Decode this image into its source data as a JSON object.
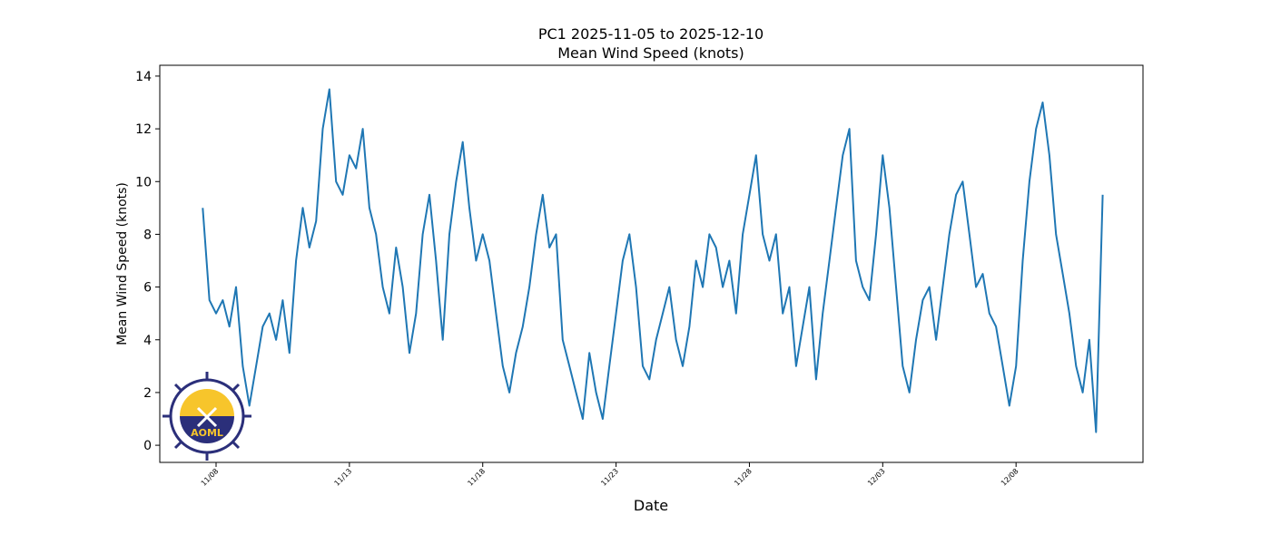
{
  "chart_data": {
    "type": "line",
    "title": "PC1 2025-11-05 to 2025-12-10",
    "subtitle": "Mean Wind Speed (knots)",
    "x_label": "Date",
    "y_label": "Mean Wind Speed (knots)",
    "logo": {
      "text": "AOML"
    },
    "x": [
      "2025-11-07T12:00",
      "2025-11-07T18:00",
      "2025-11-08T00:00",
      "2025-11-08T06:00",
      "2025-11-08T12:00",
      "2025-11-08T18:00",
      "2025-11-09T00:00",
      "2025-11-09T06:00",
      "2025-11-09T12:00",
      "2025-11-09T18:00",
      "2025-11-10T00:00",
      "2025-11-10T06:00",
      "2025-11-10T12:00",
      "2025-11-10T18:00",
      "2025-11-11T00:00",
      "2025-11-11T06:00",
      "2025-11-11T12:00",
      "2025-11-11T18:00",
      "2025-11-12T00:00",
      "2025-11-12T06:00",
      "2025-11-12T12:00",
      "2025-11-12T18:00",
      "2025-11-13T00:00",
      "2025-11-13T06:00",
      "2025-11-13T12:00",
      "2025-11-13T18:00",
      "2025-11-14T00:00",
      "2025-11-14T06:00",
      "2025-11-14T12:00",
      "2025-11-14T18:00",
      "2025-11-15T00:00",
      "2025-11-15T06:00",
      "2025-11-15T12:00",
      "2025-11-15T18:00",
      "2025-11-16T00:00",
      "2025-11-16T06:00",
      "2025-11-16T12:00",
      "2025-11-16T18:00",
      "2025-11-17T00:00",
      "2025-11-17T06:00",
      "2025-11-17T12:00",
      "2025-11-17T18:00",
      "2025-11-18T00:00",
      "2025-11-18T06:00",
      "2025-11-18T12:00",
      "2025-11-18T18:00",
      "2025-11-19T00:00",
      "2025-11-19T06:00",
      "2025-11-19T12:00",
      "2025-11-19T18:00",
      "2025-11-20T00:00",
      "2025-11-20T06:00",
      "2025-11-20T12:00",
      "2025-11-20T18:00",
      "2025-11-21T00:00",
      "2025-11-21T06:00",
      "2025-11-21T12:00",
      "2025-11-21T18:00",
      "2025-11-22T00:00",
      "2025-11-22T06:00",
      "2025-11-22T12:00",
      "2025-11-22T18:00",
      "2025-11-23T00:00",
      "2025-11-23T06:00",
      "2025-11-23T12:00",
      "2025-11-23T18:00",
      "2025-11-24T00:00",
      "2025-11-24T06:00",
      "2025-11-24T12:00",
      "2025-11-24T18:00",
      "2025-11-25T00:00",
      "2025-11-25T06:00",
      "2025-11-25T12:00",
      "2025-11-25T18:00",
      "2025-11-26T00:00",
      "2025-11-26T06:00",
      "2025-11-26T12:00",
      "2025-11-26T18:00",
      "2025-11-27T00:00",
      "2025-11-27T06:00",
      "2025-11-27T12:00",
      "2025-11-27T18:00",
      "2025-11-28T00:00",
      "2025-11-28T06:00",
      "2025-11-28T12:00",
      "2025-11-28T18:00",
      "2025-11-29T00:00",
      "2025-11-29T06:00",
      "2025-11-29T12:00",
      "2025-11-29T18:00",
      "2025-11-30T00:00",
      "2025-11-30T06:00",
      "2025-11-30T12:00",
      "2025-11-30T18:00",
      "2025-12-01T00:00",
      "2025-12-01T06:00",
      "2025-12-01T12:00",
      "2025-12-01T18:00",
      "2025-12-02T00:00",
      "2025-12-02T06:00",
      "2025-12-02T12:00",
      "2025-12-02T18:00",
      "2025-12-03T00:00",
      "2025-12-03T06:00",
      "2025-12-03T12:00",
      "2025-12-03T18:00",
      "2025-12-04T00:00",
      "2025-12-04T06:00",
      "2025-12-04T12:00",
      "2025-12-04T18:00",
      "2025-12-05T00:00",
      "2025-12-05T06:00",
      "2025-12-05T12:00",
      "2025-12-05T18:00",
      "2025-12-06T00:00",
      "2025-12-06T06:00",
      "2025-12-06T12:00",
      "2025-12-06T18:00",
      "2025-12-07T00:00",
      "2025-12-07T06:00",
      "2025-12-07T12:00",
      "2025-12-07T18:00",
      "2025-12-08T00:00",
      "2025-12-08T06:00",
      "2025-12-08T12:00",
      "2025-12-08T18:00",
      "2025-12-09T00:00",
      "2025-12-09T06:00",
      "2025-12-09T12:00",
      "2025-12-09T18:00",
      "2025-12-10T00:00",
      "2025-12-10T06:00",
      "2025-12-10T12:00",
      "2025-12-10T18:00",
      "2025-12-11T00:00",
      "2025-12-11T06:00"
    ],
    "series": [
      {
        "name": "Mean Wind Speed",
        "color": "#1f77b4",
        "values": [
          9,
          5.5,
          5,
          5.5,
          4.5,
          6,
          3,
          1.5,
          3,
          4.5,
          5,
          4,
          5.5,
          3.5,
          7,
          9,
          7.5,
          8.5,
          12,
          13.5,
          10,
          9.5,
          11,
          10.5,
          12,
          9,
          8,
          6,
          5,
          7.5,
          6,
          3.5,
          5,
          8,
          9.5,
          7,
          4,
          8,
          10,
          11.5,
          9,
          7,
          8,
          7,
          5,
          3,
          2,
          3.5,
          4.5,
          6,
          8,
          9.5,
          7.5,
          8,
          4,
          3,
          2,
          1,
          3.5,
          2,
          1,
          3,
          5,
          7,
          8,
          6,
          3,
          2.5,
          4,
          5,
          6,
          4,
          3,
          4.5,
          7,
          6,
          8,
          7.5,
          6,
          7,
          5,
          8,
          9.5,
          11,
          8,
          7,
          8,
          5,
          6,
          3,
          4.5,
          6,
          2.5,
          5,
          7,
          9,
          11,
          12,
          7,
          6,
          5.5,
          8,
          11,
          9,
          6,
          3,
          2,
          4,
          5.5,
          6,
          4,
          6,
          8,
          9.5,
          10,
          8,
          6,
          6.5,
          5,
          4.5,
          3,
          1.5,
          3,
          7,
          10,
          12,
          13,
          11,
          8,
          6.5,
          5,
          3,
          2,
          4,
          0.5,
          9.5
        ]
      }
    ],
    "xlim": [
      "2025-11-05T21:20",
      "2025-12-12T18:15"
    ],
    "xticks": [
      {
        "value": "2025-11-08T00:00",
        "label": "11/08"
      },
      {
        "value": "2025-11-13T00:00",
        "label": "11/13"
      },
      {
        "value": "2025-11-18T00:00",
        "label": "11/18"
      },
      {
        "value": "2025-11-23T00:00",
        "label": "11/23"
      },
      {
        "value": "2025-11-28T00:00",
        "label": "11/28"
      },
      {
        "value": "2025-12-03T00:00",
        "label": "12/03"
      },
      {
        "value": "2025-12-08T00:00",
        "label": "12/08"
      }
    ],
    "ylim": [
      -0.65,
      14.41
    ],
    "yticks": [
      0,
      2,
      4,
      6,
      8,
      10,
      12,
      14
    ],
    "grid": false
  }
}
